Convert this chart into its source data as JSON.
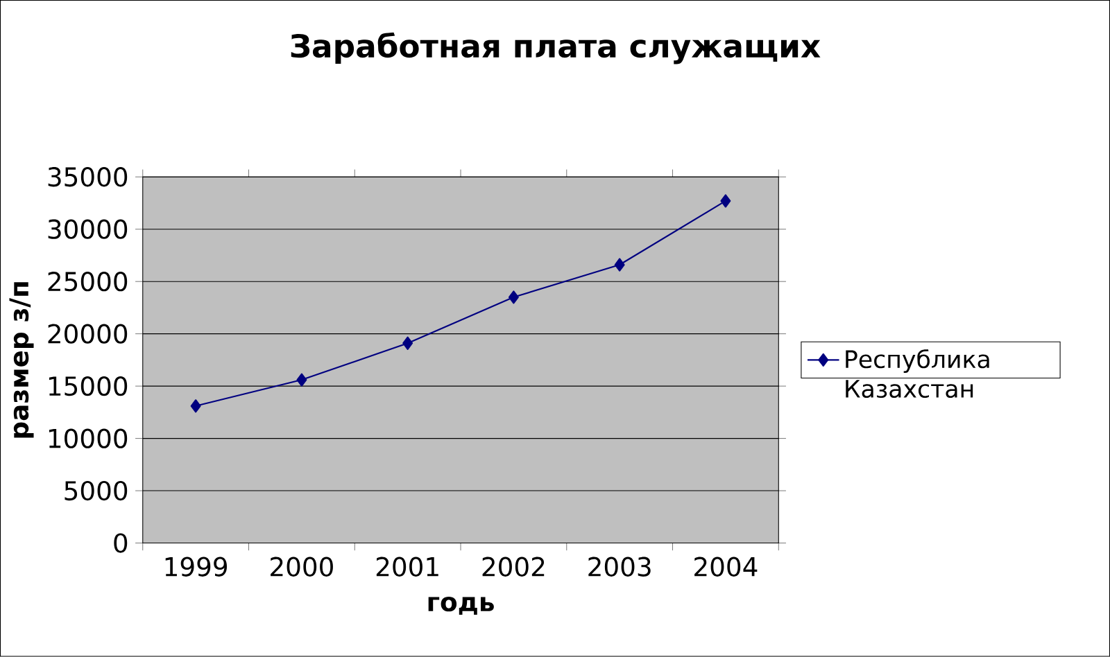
{
  "chart_data": {
    "type": "line",
    "title": "Заработная плата служащих",
    "xlabel": "годь",
    "ylabel": "размер з/п",
    "categories": [
      "1999",
      "2000",
      "2001",
      "2002",
      "2003",
      "2004"
    ],
    "series": [
      {
        "name": "Республика Казахстан",
        "color": "#000080",
        "values": [
          13100,
          15600,
          19100,
          23500,
          26600,
          32700
        ]
      }
    ],
    "ylim": [
      0,
      35000
    ],
    "yticks": [
      0,
      5000,
      10000,
      15000,
      20000,
      25000,
      30000,
      35000
    ],
    "grid": "y",
    "legend": "right",
    "marker": "diamond",
    "line_style": "solid"
  }
}
